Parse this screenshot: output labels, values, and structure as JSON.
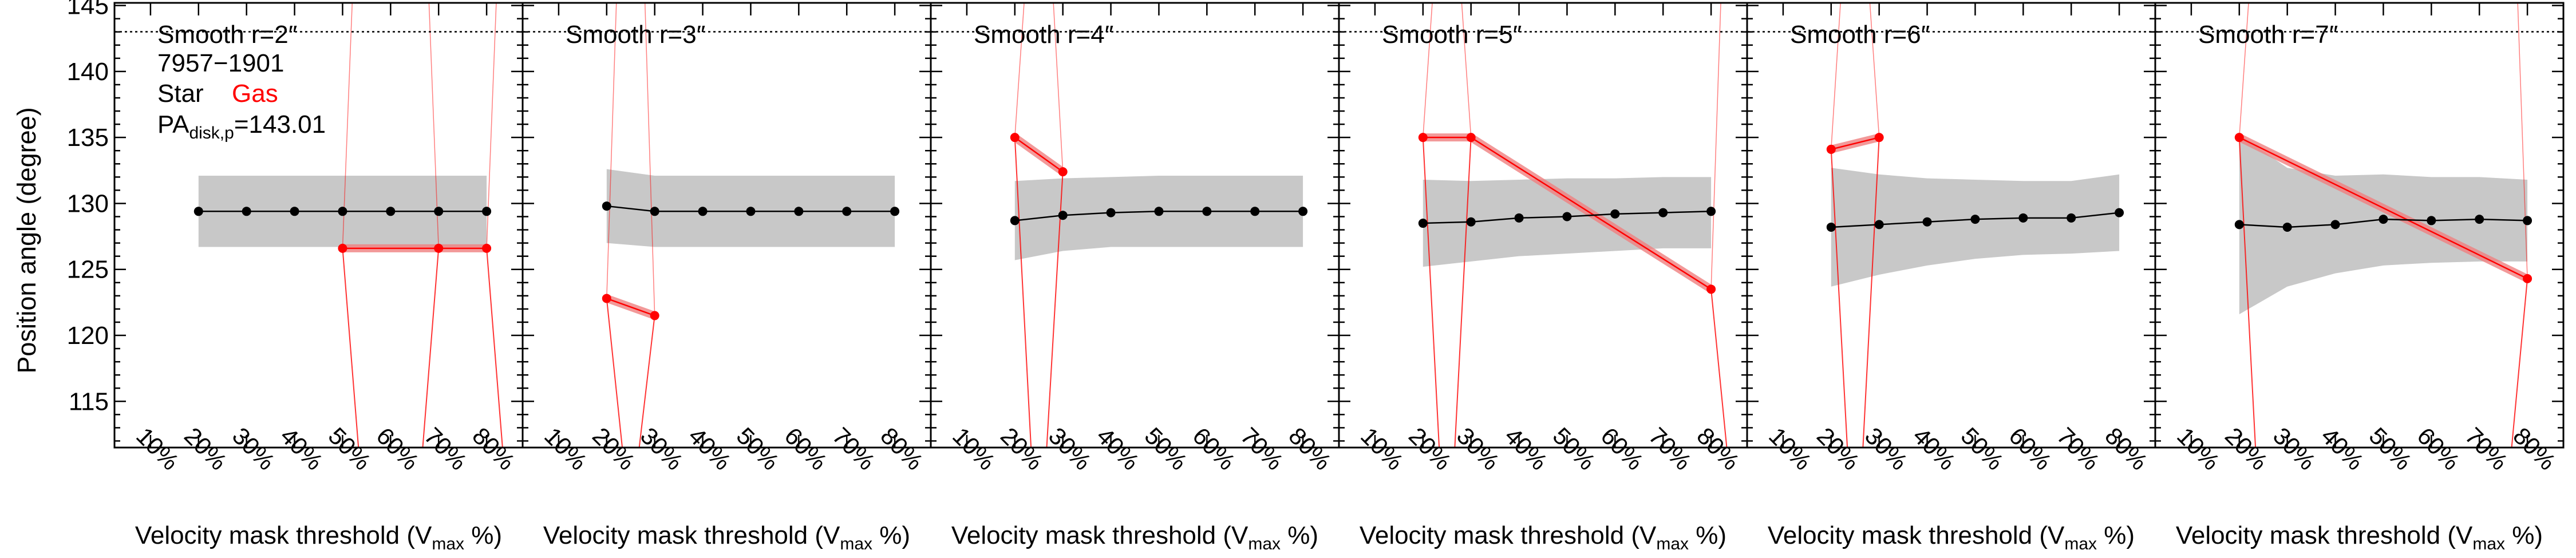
{
  "figure": {
    "ylabel": "Position angle (degree)",
    "xlabel_main": "Velocity mask threshold (V",
    "xlabel_sub": "max",
    "xlabel_tail": " %)",
    "galaxy_id": "7957−1901",
    "legend_star": "Star",
    "legend_gas": "Gas",
    "pa_label_main": "PA",
    "pa_label_sub": "disk,p",
    "pa_label_value": "=143.01",
    "colors": {
      "star": "#000000",
      "gas": "#ff0000",
      "band": "#c8c8c8",
      "gas_band": "#f08080"
    }
  },
  "chart_data": {
    "type": "line",
    "x_categories": [
      "10%",
      "20%",
      "30%",
      "40%",
      "50%",
      "60%",
      "70%",
      "80%"
    ],
    "ylim": [
      111.5,
      145.2
    ],
    "yticks": [
      115,
      120,
      125,
      130,
      135,
      140,
      145
    ],
    "reference_line": 143.01,
    "panels": [
      {
        "title": "Smooth r=2″",
        "star_x": [
          "20%",
          "30%",
          "40%",
          "50%",
          "60%",
          "70%",
          "80%"
        ],
        "star_y": [
          129.4,
          129.4,
          129.4,
          129.4,
          129.4,
          129.4,
          129.4
        ],
        "band_lower": [
          126.7,
          126.7,
          126.7,
          126.7,
          126.7,
          126.7,
          126.7
        ],
        "band_upper": [
          132.1,
          132.1,
          132.1,
          132.1,
          132.1,
          132.1,
          132.1
        ],
        "gas_x": [
          "50%",
          "70%",
          "80%"
        ],
        "gas_y": [
          126.6,
          126.6,
          126.6
        ]
      },
      {
        "title": "Smooth r=3″",
        "star_x": [
          "20%",
          "30%",
          "40%",
          "50%",
          "60%",
          "70%",
          "80%"
        ],
        "star_y": [
          129.8,
          129.4,
          129.4,
          129.4,
          129.4,
          129.4,
          129.4
        ],
        "band_lower": [
          127.0,
          126.7,
          126.7,
          126.7,
          126.7,
          126.7,
          126.7
        ],
        "band_upper": [
          132.6,
          132.1,
          132.1,
          132.1,
          132.1,
          132.1,
          132.1
        ],
        "gas_x": [
          "20%",
          "30%"
        ],
        "gas_y": [
          122.8,
          121.5
        ]
      },
      {
        "title": "Smooth r=4″",
        "star_x": [
          "20%",
          "30%",
          "40%",
          "50%",
          "60%",
          "70%",
          "80%"
        ],
        "star_y": [
          128.7,
          129.1,
          129.3,
          129.4,
          129.4,
          129.4,
          129.4
        ],
        "band_lower": [
          125.7,
          126.4,
          126.7,
          126.7,
          126.7,
          126.7,
          126.7
        ],
        "band_upper": [
          131.7,
          131.9,
          132.0,
          132.1,
          132.1,
          132.1,
          132.1
        ],
        "gas_x": [
          "20%",
          "30%"
        ],
        "gas_y": [
          135.0,
          132.4
        ]
      },
      {
        "title": "Smooth r=5″",
        "star_x": [
          "20%",
          "30%",
          "40%",
          "50%",
          "60%",
          "70%",
          "80%"
        ],
        "star_y": [
          128.5,
          128.6,
          128.9,
          129.0,
          129.2,
          129.3,
          129.4
        ],
        "band_lower": [
          125.2,
          125.6,
          126.0,
          126.2,
          126.4,
          126.6,
          126.6
        ],
        "band_upper": [
          131.8,
          131.7,
          131.8,
          131.9,
          131.9,
          132.0,
          132.0
        ],
        "gas_x": [
          "20%",
          "30%",
          "80%"
        ],
        "gas_y": [
          135.0,
          135.0,
          123.5
        ]
      },
      {
        "title": "Smooth r=6″",
        "star_x": [
          "20%",
          "30%",
          "40%",
          "50%",
          "60%",
          "70%",
          "80%"
        ],
        "star_y": [
          128.2,
          128.4,
          128.6,
          128.8,
          128.9,
          128.9,
          129.3
        ],
        "band_lower": [
          123.7,
          124.6,
          125.3,
          125.8,
          126.1,
          126.2,
          126.4
        ],
        "band_upper": [
          132.7,
          132.2,
          131.9,
          131.8,
          131.7,
          131.7,
          132.2
        ],
        "gas_x": [
          "20%",
          "30%"
        ],
        "gas_y": [
          134.1,
          135.0
        ]
      },
      {
        "title": "Smooth r=7″",
        "star_x": [
          "20%",
          "30%",
          "40%",
          "50%",
          "60%",
          "70%",
          "80%"
        ],
        "star_y": [
          128.4,
          128.2,
          128.4,
          128.8,
          128.7,
          128.8,
          128.7
        ],
        "band_lower": [
          121.6,
          123.7,
          124.7,
          125.3,
          125.5,
          125.6,
          125.6
        ],
        "band_upper": [
          135.2,
          132.7,
          132.1,
          132.2,
          132.0,
          132.0,
          131.8
        ],
        "gas_x": [
          "20%",
          "80%"
        ],
        "gas_y": [
          135.0,
          124.3
        ]
      }
    ]
  }
}
